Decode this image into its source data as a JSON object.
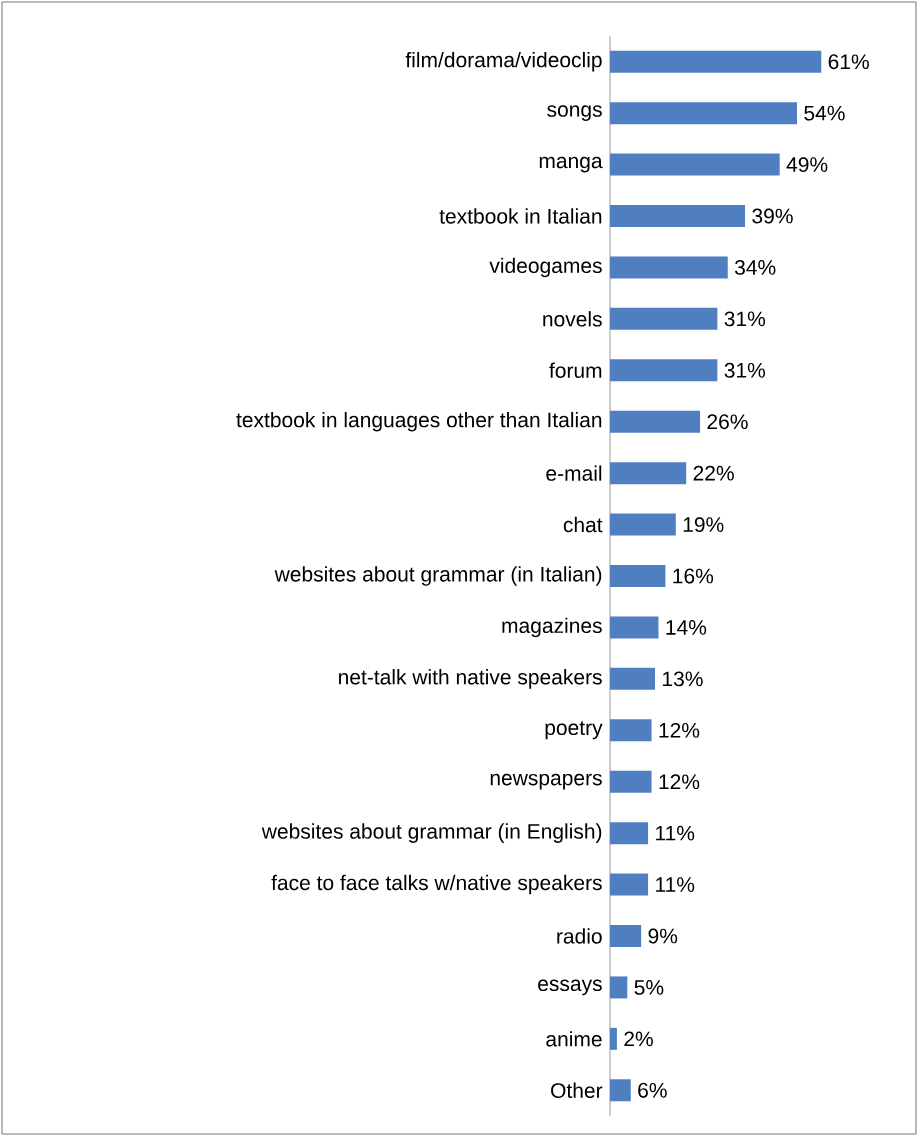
{
  "chart_data": {
    "type": "bar",
    "orientation": "horizontal",
    "color": "#4f7fc0",
    "categories": [
      "film/dorama/videoclip",
      "songs",
      "manga",
      "textbook in Italian",
      "videogames",
      "novels",
      "forum",
      "textbook in languages other than Italian",
      "e-mail",
      "chat",
      "websites about grammar (in Italian)",
      "magazines",
      "net-talk with native speakers",
      "poetry",
      "newspapers",
      "websites about grammar (in English)",
      "face to face talks w/native speakers",
      "radio",
      "essays",
      "anime",
      "Other"
    ],
    "values": [
      61,
      54,
      49,
      39,
      34,
      31,
      31,
      26,
      22,
      19,
      16,
      14,
      13,
      12,
      12,
      11,
      11,
      9,
      5,
      2,
      6
    ],
    "value_labels": [
      "61%",
      "54%",
      "49%",
      "39%",
      "34%",
      "31%",
      "31%",
      "26%",
      "22%",
      "19%",
      "16%",
      "14%",
      "13%",
      "12%",
      "12%",
      "11%",
      "11%",
      "9%",
      "5%",
      "2%",
      "6%"
    ]
  }
}
